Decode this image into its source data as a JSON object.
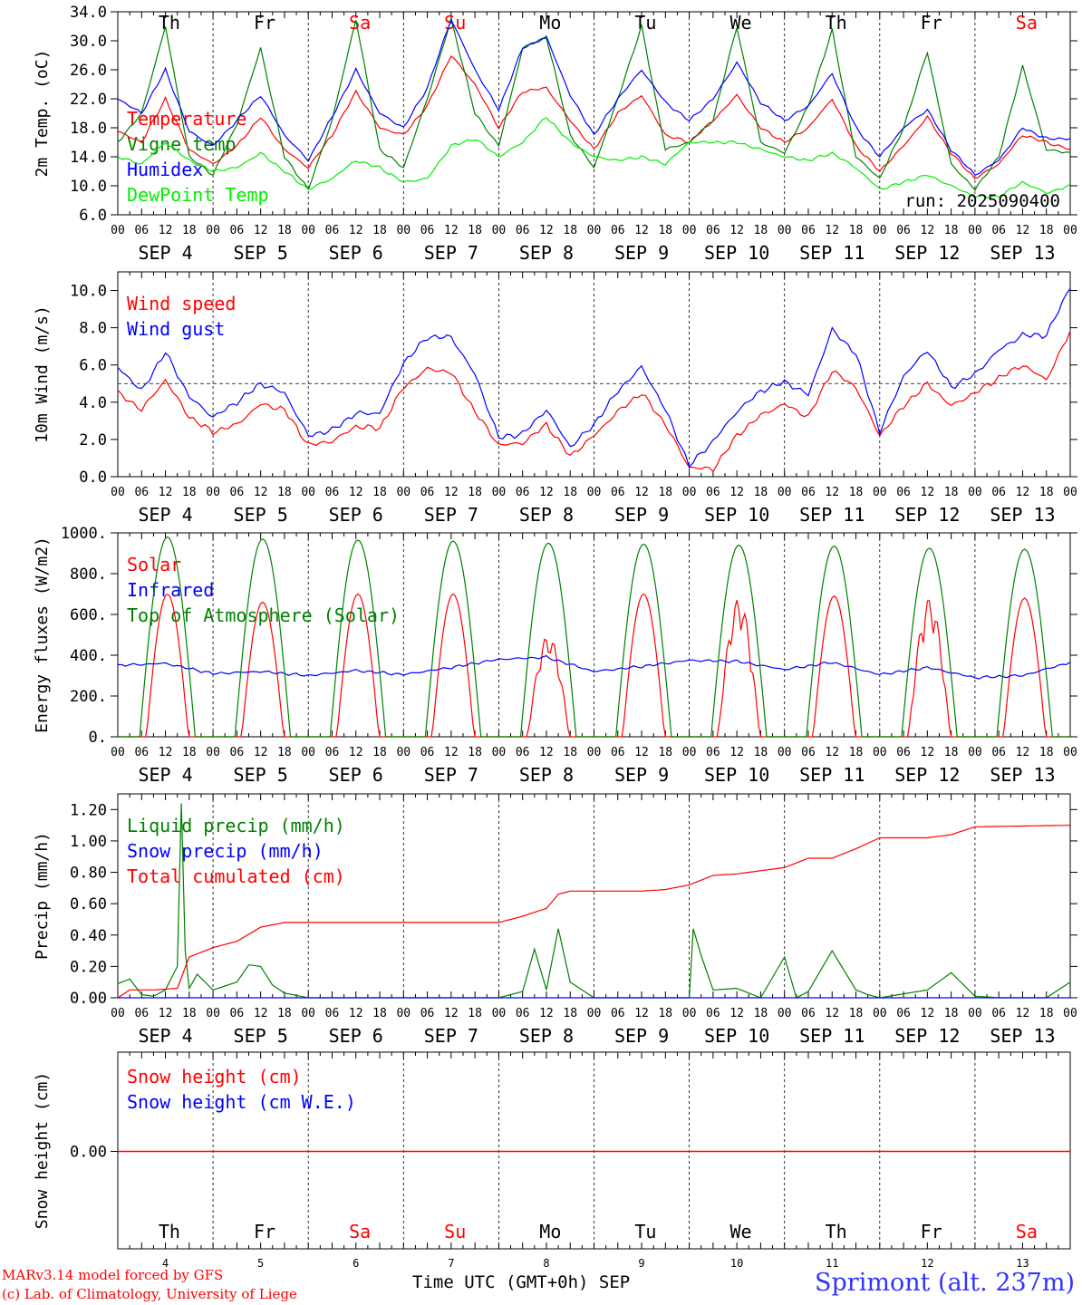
{
  "station": "Sprimont (alt. 237m)",
  "credits": [
    "MARv3.14 model forced by GFS",
    "(c) Lab. of Climatology, University of Liege"
  ],
  "run_label": "run: 2025090400",
  "time_axis": {
    "title": "Time UTC (GMT+0h)",
    "month": "SEP",
    "hour_ticks": [
      "00",
      "06",
      "12",
      "18"
    ],
    "end_tick": "00",
    "dates": [
      "SEP  4",
      "SEP  5",
      "SEP  6",
      "SEP  7",
      "SEP  8",
      "SEP  9",
      "SEP 10",
      "SEP 11",
      "SEP 12",
      "SEP 13"
    ],
    "day_numbers": [
      "4",
      "5",
      "6",
      "7",
      "8",
      "9",
      "10",
      "11",
      "12",
      "13"
    ],
    "weekdays": [
      "Th",
      "Fr",
      "Sa",
      "Su",
      "Mo",
      "Tu",
      "We",
      "Th",
      "Fr",
      "Sa"
    ],
    "weekend_color": "#ff0000"
  },
  "chart_data": [
    {
      "type": "line",
      "ylabel": "2m Temp. (oC)",
      "ylim": [
        6.0,
        34.0
      ],
      "yticks": [
        "6.0",
        "10.0",
        "14.0",
        "18.0",
        "22.0",
        "26.0",
        "30.0",
        "34.0"
      ],
      "x_hours": [
        0,
        6,
        12,
        18,
        24,
        30,
        36,
        42,
        48,
        54,
        60,
        66,
        72,
        78,
        84,
        90,
        96,
        102,
        108,
        114,
        120,
        126,
        132,
        138,
        144,
        150,
        156,
        162,
        168,
        174,
        180,
        186,
        192,
        198,
        204,
        210,
        216,
        222,
        228,
        234,
        240
      ],
      "series": [
        {
          "name": "Temperature",
          "color": "#ff0000",
          "values": [
            17.5,
            16.0,
            22.0,
            15.0,
            13.0,
            15.5,
            19.5,
            15.0,
            12.5,
            17.0,
            23.0,
            18.0,
            17.0,
            21.0,
            28.0,
            24.0,
            18.0,
            23.0,
            23.5,
            19.0,
            15.0,
            20.0,
            22.5,
            17.0,
            16.0,
            19.0,
            22.5,
            18.0,
            16.0,
            18.0,
            22.0,
            15.5,
            12.0,
            15.5,
            19.5,
            14.5,
            11.0,
            13.0,
            17.0,
            16.0,
            15.0
          ]
        },
        {
          "name": "Vigne temp",
          "color": "#008000",
          "values": [
            16.0,
            20.0,
            32.0,
            14.0,
            11.5,
            18.5,
            29.0,
            14.0,
            9.5,
            19.0,
            33.0,
            15.0,
            12.5,
            22.0,
            33.0,
            20.0,
            15.5,
            29.0,
            30.5,
            17.0,
            12.5,
            22.0,
            32.0,
            15.0,
            16.0,
            19.0,
            32.0,
            16.0,
            14.5,
            21.0,
            31.5,
            14.0,
            11.0,
            18.0,
            28.5,
            13.0,
            9.5,
            14.0,
            26.5,
            15.0,
            14.5
          ]
        },
        {
          "name": "Humidex",
          "color": "#0000ff",
          "values": [
            22.0,
            20.0,
            26.0,
            17.5,
            15.5,
            19.0,
            22.5,
            17.0,
            13.5,
            19.5,
            26.0,
            20.0,
            18.0,
            23.5,
            33.0,
            26.0,
            20.5,
            29.0,
            30.5,
            22.5,
            17.0,
            22.0,
            26.0,
            21.5,
            19.0,
            22.0,
            27.0,
            21.5,
            19.0,
            21.0,
            25.5,
            18.0,
            14.0,
            18.0,
            20.5,
            15.0,
            11.5,
            13.5,
            18.0,
            16.5,
            16.5
          ]
        },
        {
          "name": "DewPoint Temp",
          "color": "#00ee00",
          "values": [
            14.0,
            13.0,
            16.0,
            13.5,
            12.0,
            12.5,
            14.5,
            12.0,
            9.5,
            11.0,
            13.5,
            12.5,
            10.5,
            11.0,
            15.5,
            16.5,
            14.0,
            16.0,
            19.5,
            16.0,
            14.0,
            13.5,
            14.0,
            13.0,
            16.0,
            16.0,
            16.0,
            15.0,
            14.0,
            13.5,
            14.5,
            12.5,
            9.5,
            10.5,
            11.5,
            10.0,
            8.5,
            8.5,
            10.5,
            9.0,
            10.0
          ]
        }
      ]
    },
    {
      "type": "line",
      "ylabel": "10m Wind (m/s)",
      "ylim": [
        0.0,
        11.0
      ],
      "yticks": [
        "0.0",
        "2.0",
        "4.0",
        "6.0",
        "8.0",
        "10.0"
      ],
      "reference_line": 5.0,
      "x_hours": [
        0,
        6,
        12,
        18,
        24,
        30,
        36,
        42,
        48,
        54,
        60,
        66,
        72,
        78,
        84,
        90,
        96,
        102,
        108,
        114,
        120,
        126,
        132,
        138,
        144,
        150,
        156,
        162,
        168,
        174,
        180,
        186,
        192,
        198,
        204,
        210,
        216,
        222,
        228,
        234,
        240
      ],
      "series": [
        {
          "name": "Wind speed",
          "color": "#ff0000",
          "values": [
            4.5,
            3.6,
            5.2,
            3.2,
            2.4,
            2.8,
            3.9,
            3.6,
            1.7,
            1.9,
            2.7,
            2.6,
            4.8,
            5.8,
            5.6,
            3.5,
            1.7,
            1.8,
            2.8,
            1.1,
            2.2,
            3.5,
            4.5,
            2.8,
            0.5,
            0.4,
            2.2,
            3.3,
            3.9,
            3.2,
            5.7,
            4.8,
            2.2,
            3.8,
            5.0,
            3.8,
            4.5,
            5.3,
            6.0,
            5.2,
            7.8
          ]
        },
        {
          "name": "Wind gust",
          "color": "#0000ff",
          "values": [
            5.9,
            4.6,
            6.7,
            4.3,
            3.2,
            4.0,
            5.0,
            4.5,
            2.2,
            2.5,
            3.4,
            3.4,
            6.1,
            7.5,
            7.5,
            5.5,
            2.1,
            2.3,
            3.6,
            1.6,
            2.8,
            4.6,
            5.9,
            3.6,
            0.6,
            1.9,
            3.5,
            4.6,
            5.1,
            4.4,
            7.9,
            6.6,
            2.4,
            5.4,
            6.8,
            4.8,
            5.5,
            6.8,
            7.6,
            7.6,
            10.2
          ]
        }
      ]
    },
    {
      "type": "line",
      "ylabel": "Energy fluxes (W/m2)",
      "ylim": [
        0,
        1000
      ],
      "yticks": [
        "0.",
        "200.",
        "400.",
        "600.",
        "800.",
        "1000."
      ],
      "series": [
        {
          "name": "Solar",
          "color": "#ff0000",
          "peaks_by_day": [
            700,
            660,
            700,
            700,
            500,
            700,
            680,
            690,
            680,
            680
          ]
        },
        {
          "name": "Infrared",
          "color": "#0000ff",
          "x_hours": [
            0,
            12,
            24,
            36,
            48,
            60,
            72,
            84,
            96,
            108,
            120,
            132,
            144,
            156,
            168,
            180,
            192,
            204,
            216,
            228,
            240
          ],
          "values": [
            350,
            360,
            310,
            320,
            300,
            325,
            305,
            340,
            380,
            390,
            320,
            345,
            375,
            370,
            330,
            365,
            305,
            340,
            290,
            300,
            365
          ]
        },
        {
          "name": "Top of Atmosphere (Solar)",
          "color": "#008000",
          "peaks_by_day": [
            980,
            970,
            965,
            960,
            950,
            945,
            940,
            935,
            925,
            920
          ]
        }
      ]
    },
    {
      "type": "line",
      "ylabel": "Precip (mm/h)",
      "ylim": [
        0.0,
        1.3
      ],
      "yticks": [
        "0.00",
        "0.20",
        "0.40",
        "0.60",
        "0.80",
        "1.00",
        "1.20"
      ],
      "series": [
        {
          "name": "Liquid precip (mm/h)",
          "color": "#008000",
          "x_hours": [
            0,
            3,
            6,
            9,
            12,
            15,
            16,
            17,
            18,
            20,
            24,
            30,
            33,
            36,
            39,
            42,
            48,
            96,
            102,
            105,
            108,
            111,
            114,
            120,
            144,
            145,
            147,
            150,
            156,
            162,
            168,
            171,
            174,
            180,
            186,
            189,
            192,
            204,
            210,
            216,
            222,
            228,
            234,
            240
          ],
          "values": [
            0.09,
            0.12,
            0.02,
            0.01,
            0.05,
            0.2,
            1.24,
            0.3,
            0.06,
            0.15,
            0.05,
            0.1,
            0.21,
            0.2,
            0.08,
            0.03,
            0.0,
            0.0,
            0.04,
            0.31,
            0.05,
            0.44,
            0.1,
            0.0,
            0.0,
            0.44,
            0.27,
            0.05,
            0.06,
            0.0,
            0.26,
            0.0,
            0.04,
            0.3,
            0.05,
            0.02,
            0.0,
            0.05,
            0.16,
            0.01,
            0.0,
            0.0,
            0.0,
            0.1
          ]
        },
        {
          "name": "Snow precip (mm/h)",
          "color": "#0000ff",
          "x_hours": [
            0,
            240
          ],
          "values": [
            0.0,
            0.0
          ]
        },
        {
          "name": "Total cumulated (cm)",
          "color": "#ff0000",
          "x_hours": [
            0,
            3,
            9,
            15,
            18,
            24,
            30,
            36,
            42,
            48,
            96,
            102,
            108,
            111,
            114,
            120,
            132,
            138,
            144,
            150,
            156,
            162,
            168,
            174,
            180,
            186,
            192,
            204,
            210,
            216,
            240
          ],
          "values": [
            0.0,
            0.05,
            0.05,
            0.06,
            0.26,
            0.32,
            0.36,
            0.45,
            0.48,
            0.48,
            0.48,
            0.52,
            0.57,
            0.66,
            0.68,
            0.68,
            0.68,
            0.69,
            0.72,
            0.78,
            0.79,
            0.81,
            0.83,
            0.89,
            0.89,
            0.95,
            1.02,
            1.02,
            1.04,
            1.09,
            1.1
          ]
        }
      ]
    },
    {
      "type": "line",
      "ylabel": "Snow height (cm)",
      "yticks": [
        "0.00"
      ],
      "series": [
        {
          "name": "Snow height (cm)",
          "color": "#ff0000",
          "x_hours": [
            0,
            240
          ],
          "values": [
            0.0,
            0.0
          ]
        },
        {
          "name": "Snow height (cm W.E.)",
          "color": "#0000ff",
          "x_hours": [
            0,
            240
          ],
          "values": [
            0.0,
            0.0
          ]
        }
      ]
    }
  ]
}
